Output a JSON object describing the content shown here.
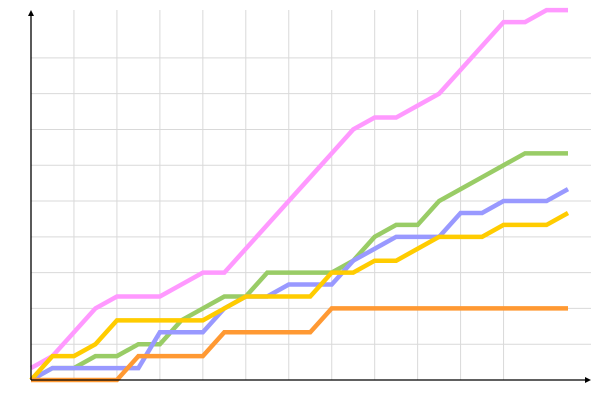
{
  "chart_data": {
    "type": "line",
    "title": "",
    "xlabel": "",
    "ylabel": "",
    "xlim": [
      0,
      25
    ],
    "ylim": [
      0,
      31
    ],
    "grid": true,
    "grid_x_step": 2,
    "grid_x_max": 22,
    "grid_y_step": 3,
    "grid_y_max": 27,
    "tick_labels": false,
    "legend": "none",
    "x": [
      0,
      1,
      2,
      3,
      4,
      5,
      6,
      7,
      8,
      9,
      10,
      11,
      12,
      13,
      14,
      15,
      16,
      17,
      18,
      19,
      20,
      21,
      22,
      23,
      24,
      25
    ],
    "series": [
      {
        "color": "#ff99ff",
        "values": [
          1,
          2,
          4,
          6,
          7,
          7,
          7,
          8,
          9,
          9,
          11,
          13,
          15,
          17,
          19,
          21,
          22,
          22,
          23,
          24,
          26,
          28,
          30,
          30,
          31,
          31
        ]
      },
      {
        "color": "#99cc66",
        "values": [
          0,
          1,
          1,
          2,
          2,
          3,
          3,
          5,
          6,
          7,
          7,
          9,
          9,
          9,
          9,
          10,
          12,
          13,
          13,
          15,
          16,
          17,
          18,
          19,
          19,
          19
        ]
      },
      {
        "color": "#9999ff",
        "values": [
          0,
          1,
          1,
          1,
          1,
          1,
          4,
          4,
          4,
          6,
          7,
          7,
          8,
          8,
          8,
          10,
          11,
          12,
          12,
          12,
          14,
          14,
          15,
          15,
          15,
          16
        ]
      },
      {
        "color": "#ffcc00",
        "values": [
          0,
          2,
          2,
          3,
          5,
          5,
          5,
          5,
          5,
          6,
          7,
          7,
          7,
          7,
          9,
          9,
          10,
          10,
          11,
          12,
          12,
          12,
          13,
          13,
          13,
          14
        ]
      },
      {
        "color": "#ff9933",
        "values": [
          0,
          0,
          0,
          0,
          0,
          2,
          2,
          2,
          2,
          4,
          4,
          4,
          4,
          4,
          6,
          6,
          6,
          6,
          6,
          6,
          6,
          6,
          6,
          6,
          6,
          6
        ]
      }
    ]
  }
}
